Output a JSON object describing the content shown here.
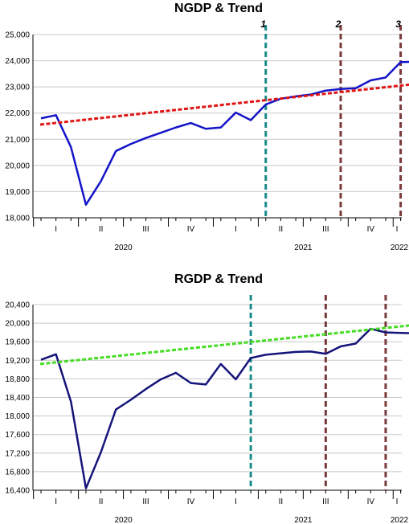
{
  "chart_data": [
    {
      "type": "line",
      "title": "NGDP & Trend",
      "xlabel": "",
      "ylabel": "",
      "ylim": [
        18000,
        25000
      ],
      "yticks": [
        "18,000",
        "19,000",
        "20,000",
        "21,000",
        "22,000",
        "23,000",
        "24,000",
        "25,000"
      ],
      "ytick_values": [
        18000,
        19000,
        20000,
        21000,
        22000,
        23000,
        24000,
        25000
      ],
      "x_period_labels": [
        "I",
        "II",
        "III",
        "IV",
        "I",
        "II",
        "III",
        "IV",
        "I"
      ],
      "x_year_labels": [
        "2020",
        "2021",
        "2022"
      ],
      "grid": true,
      "series": [
        {
          "values": [
            21800,
            21920,
            20700,
            18500,
            19400,
            20550,
            20820,
            21050,
            21250,
            21450,
            21620,
            21400,
            21450,
            22020,
            21730,
            22330,
            22550,
            22640,
            22710,
            22860,
            22920,
            22950,
            23250,
            23360,
            23950,
            23960,
            24080,
            24200
          ],
          "color": "#1414c8"
        },
        {
          "values": [
            21560,
            23240
          ],
          "color": "#e01414",
          "style": "dashed"
        }
      ],
      "vlines": [
        {
          "label": "1",
          "month_index": 15,
          "color": "#1a8a8a"
        },
        {
          "label": "2",
          "month_index": 20,
          "color": "#7a3a3a"
        },
        {
          "label": "3",
          "month_index": 24,
          "color": "#7a3a3a"
        }
      ]
    },
    {
      "type": "line",
      "title": "RGDP & Trend",
      "xlabel": "",
      "ylabel": "",
      "ylim": [
        16400,
        20400
      ],
      "yticks": [
        "16,400",
        "16,800",
        "17,200",
        "17,600",
        "18,000",
        "18,400",
        "18,800",
        "19,200",
        "19,600",
        "20,000",
        "20,400"
      ],
      "ytick_values": [
        16400,
        16800,
        17200,
        17600,
        18000,
        18400,
        18800,
        19200,
        19600,
        20000,
        20400
      ],
      "x_period_labels": [
        "I",
        "II",
        "III",
        "IV",
        "I",
        "II",
        "III",
        "IV",
        "I"
      ],
      "x_year_labels": [
        "2020",
        "2021",
        "2022"
      ],
      "grid": true,
      "series": [
        {
          "values": [
            19210,
            19330,
            18310,
            16440,
            17220,
            18140,
            18350,
            18580,
            18790,
            18930,
            18710,
            18680,
            19120,
            18790,
            19250,
            19320,
            19350,
            19380,
            19390,
            19340,
            19500,
            19560,
            19880,
            19800,
            19790,
            19780,
            19790
          ],
          "color": "#14147a"
        },
        {
          "values": [
            19120,
            20000
          ],
          "color": "#44dd22",
          "style": "dashed"
        }
      ],
      "vlines": [
        {
          "label": "",
          "month_index": 14,
          "color": "#1a8a8a"
        },
        {
          "label": "",
          "month_index": 19,
          "color": "#7a3a3a"
        },
        {
          "label": "",
          "month_index": 23,
          "color": "#7a3a3a"
        }
      ]
    }
  ]
}
